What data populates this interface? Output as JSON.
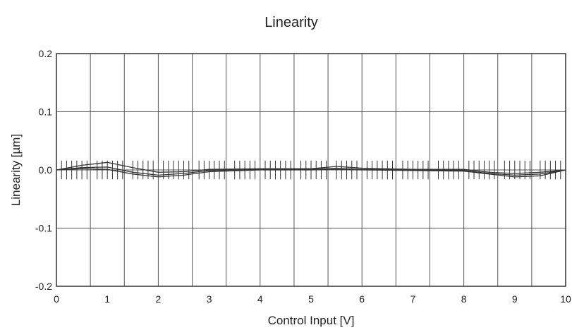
{
  "chart_data": {
    "type": "line",
    "title": "Linearity",
    "xlabel": "Control Input [V]",
    "ylabel": "Linearity [µm]",
    "xlim": [
      0,
      10
    ],
    "ylim": [
      -0.2,
      0.2
    ],
    "x_ticks": [
      "0",
      "1",
      "2",
      "3",
      "4",
      "5",
      "6",
      "7",
      "8",
      "9",
      "10"
    ],
    "y_ticks": [
      "0.2",
      "0.1",
      "0.0",
      "-0.1",
      "-0.2"
    ],
    "grid": true,
    "series": [
      {
        "x": [
          0,
          0.5,
          1.0,
          1.5,
          2.0,
          2.5,
          3.0,
          4.0,
          5.0,
          5.5,
          6.0,
          7.0,
          8.0,
          8.5,
          9.0,
          9.5,
          10.0
        ],
        "y": [
          0,
          0.008,
          0.013,
          0.004,
          -0.004,
          -0.003,
          0.001,
          0.002,
          0.002,
          0.006,
          0.003,
          0.001,
          0.001,
          -0.004,
          -0.006,
          -0.004,
          0
        ]
      },
      {
        "x": [
          0,
          0.5,
          1.0,
          1.5,
          2.0,
          2.5,
          3.0,
          4.0,
          5.0,
          5.5,
          6.0,
          7.0,
          8.0,
          8.5,
          9.0,
          9.5,
          10.0
        ],
        "y": [
          0,
          0.004,
          0.005,
          -0.004,
          -0.009,
          -0.006,
          -0.001,
          0.001,
          0.001,
          0.003,
          0.001,
          0.0,
          -0.001,
          -0.006,
          -0.009,
          -0.007,
          0
        ]
      },
      {
        "x": [
          0,
          0.5,
          1.0,
          1.5,
          2.0,
          2.5,
          3.0,
          4.0,
          5.0,
          5.5,
          6.0,
          7.0,
          8.0,
          8.5,
          9.0,
          9.5,
          10.0
        ],
        "y": [
          0,
          0.002,
          0.001,
          -0.007,
          -0.012,
          -0.009,
          -0.003,
          0.0,
          0.0,
          0.001,
          0.0,
          -0.001,
          -0.002,
          -0.007,
          -0.012,
          -0.01,
          0
        ]
      }
    ],
    "error_bars": {
      "x": [
        0.1,
        0.2,
        0.3,
        0.4,
        0.5,
        0.6,
        0.8,
        0.9,
        1.0,
        1.1,
        1.2,
        1.3,
        1.5,
        1.6,
        1.7,
        1.8,
        1.9,
        2.1,
        2.2,
        2.3,
        2.4,
        2.5,
        2.6,
        2.8,
        2.9,
        3.0,
        3.1,
        3.2,
        3.3,
        3.5,
        3.6,
        3.7,
        3.8,
        3.9,
        4.1,
        4.2,
        4.3,
        4.4,
        4.5,
        4.6,
        4.8,
        4.9,
        5.0,
        5.1,
        5.2,
        5.3,
        5.5,
        5.6,
        5.7,
        5.8,
        5.9,
        6.1,
        6.2,
        6.3,
        6.4,
        6.5,
        6.6,
        6.8,
        6.9,
        7.0,
        7.1,
        7.2,
        7.3,
        7.5,
        7.6,
        7.7,
        7.8,
        7.9,
        8.1,
        8.2,
        8.3,
        8.4,
        8.5,
        8.6,
        8.8,
        8.9,
        9.0,
        9.1,
        9.2,
        9.3,
        9.5,
        9.6,
        9.7,
        9.8,
        9.9
      ],
      "half_width": 0.016
    }
  }
}
